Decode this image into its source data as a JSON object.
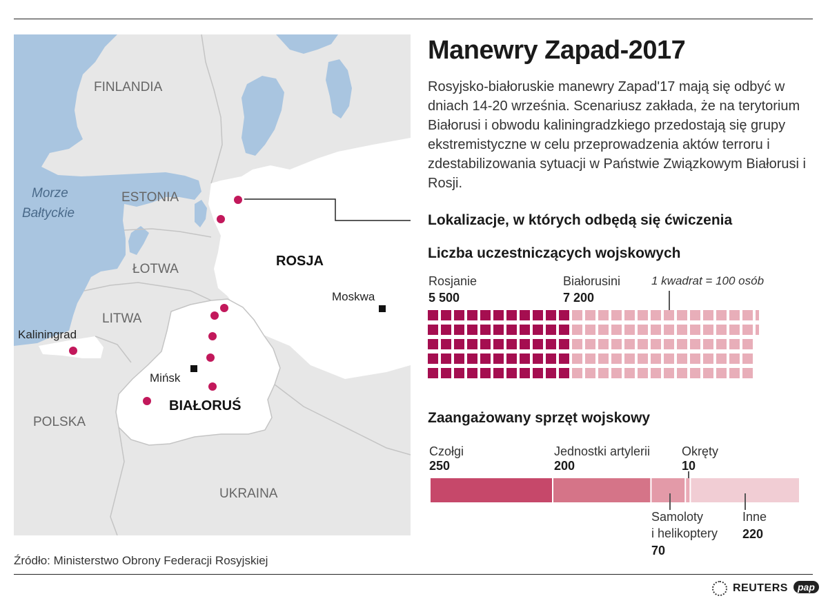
{
  "title": "Manewry Zapad-2017",
  "description": "Rosyjsko-białoruskie manewry Zapad'17 mają się odbyć w dniach 14-20 września. Scenariusz zakłada, że na terytorium Białorusi i obwodu kaliningradzkiego przedostają się grupy ekstremistyczne w celu przeprowadzenia aktów terroru i zdestabilizowania sytuacji w Państwie Związkowym Białorusi i Rosji.",
  "map": {
    "labels": {
      "finland": "FINLANDIA",
      "estonia": "ESTONIA",
      "latvia": "ŁOTWA",
      "lithuania": "LITWA",
      "poland": "POLSKA",
      "ukraine": "UKRAINA",
      "russia": "ROSJA",
      "belarus": "BIAŁORUŚ",
      "sea_line1": "Morze",
      "sea_line2": "Bałtyckie",
      "kaliningrad": "Kaliningrad",
      "minsk": "Mińsk",
      "moscow": "Moskwa"
    },
    "colors": {
      "water": "#a9c5e0",
      "land": "#e7e7e7",
      "highlight": "#ffffff",
      "border": "#bdbdbd",
      "marker": "#c2185b"
    },
    "exercise_locations_count": 9
  },
  "locations_title": "Lokalizacje, w których odbędą się ćwiczenia",
  "participants": {
    "title": "Liczba uczestniczących wojskowych",
    "note": "1 kwadrat = 100 osób",
    "groups": [
      {
        "label": "Rosjanie",
        "value_text": "5 500",
        "value": 5500,
        "color": "#a50e50"
      },
      {
        "label": "Białorusini",
        "value_text": "7 200",
        "value": 7200,
        "color": "#e8aeb9"
      }
    ]
  },
  "equipment": {
    "title": "Zaangażowany sprzęt wojskowy",
    "items": [
      {
        "label": "Czołgi",
        "label2": "",
        "value": 250,
        "color": "#c6486a"
      },
      {
        "label": "Jednostki artylerii",
        "label2": "",
        "value": 200,
        "color": "#d57488"
      },
      {
        "label": "Samoloty",
        "label2": "i helikoptery",
        "value": 70,
        "color": "#e39aa8"
      },
      {
        "label": "Okręty",
        "label2": "",
        "value": 10,
        "color": "#e9aab6"
      },
      {
        "label": "Inne",
        "label2": "",
        "value": 220,
        "color": "#f1cdd4"
      }
    ]
  },
  "source": "Źródło: Ministerstwo Obrony Federacji Rosyjskiej",
  "logos": {
    "reuters": "REUTERS",
    "pap": "pap"
  },
  "chart_data": [
    {
      "type": "waffle",
      "title": "Liczba uczestniczących wojskowych",
      "unit": "1 kwadrat = 100 osób",
      "categories": [
        "Rosjanie",
        "Białorusini"
      ],
      "values": [
        5500,
        7200
      ]
    },
    {
      "type": "bar",
      "title": "Zaangażowany sprzęt wojskowy",
      "categories": [
        "Czołgi",
        "Jednostki artylerii",
        "Samoloty i helikoptery",
        "Okręty",
        "Inne"
      ],
      "values": [
        250,
        200,
        70,
        10,
        220
      ]
    }
  ]
}
